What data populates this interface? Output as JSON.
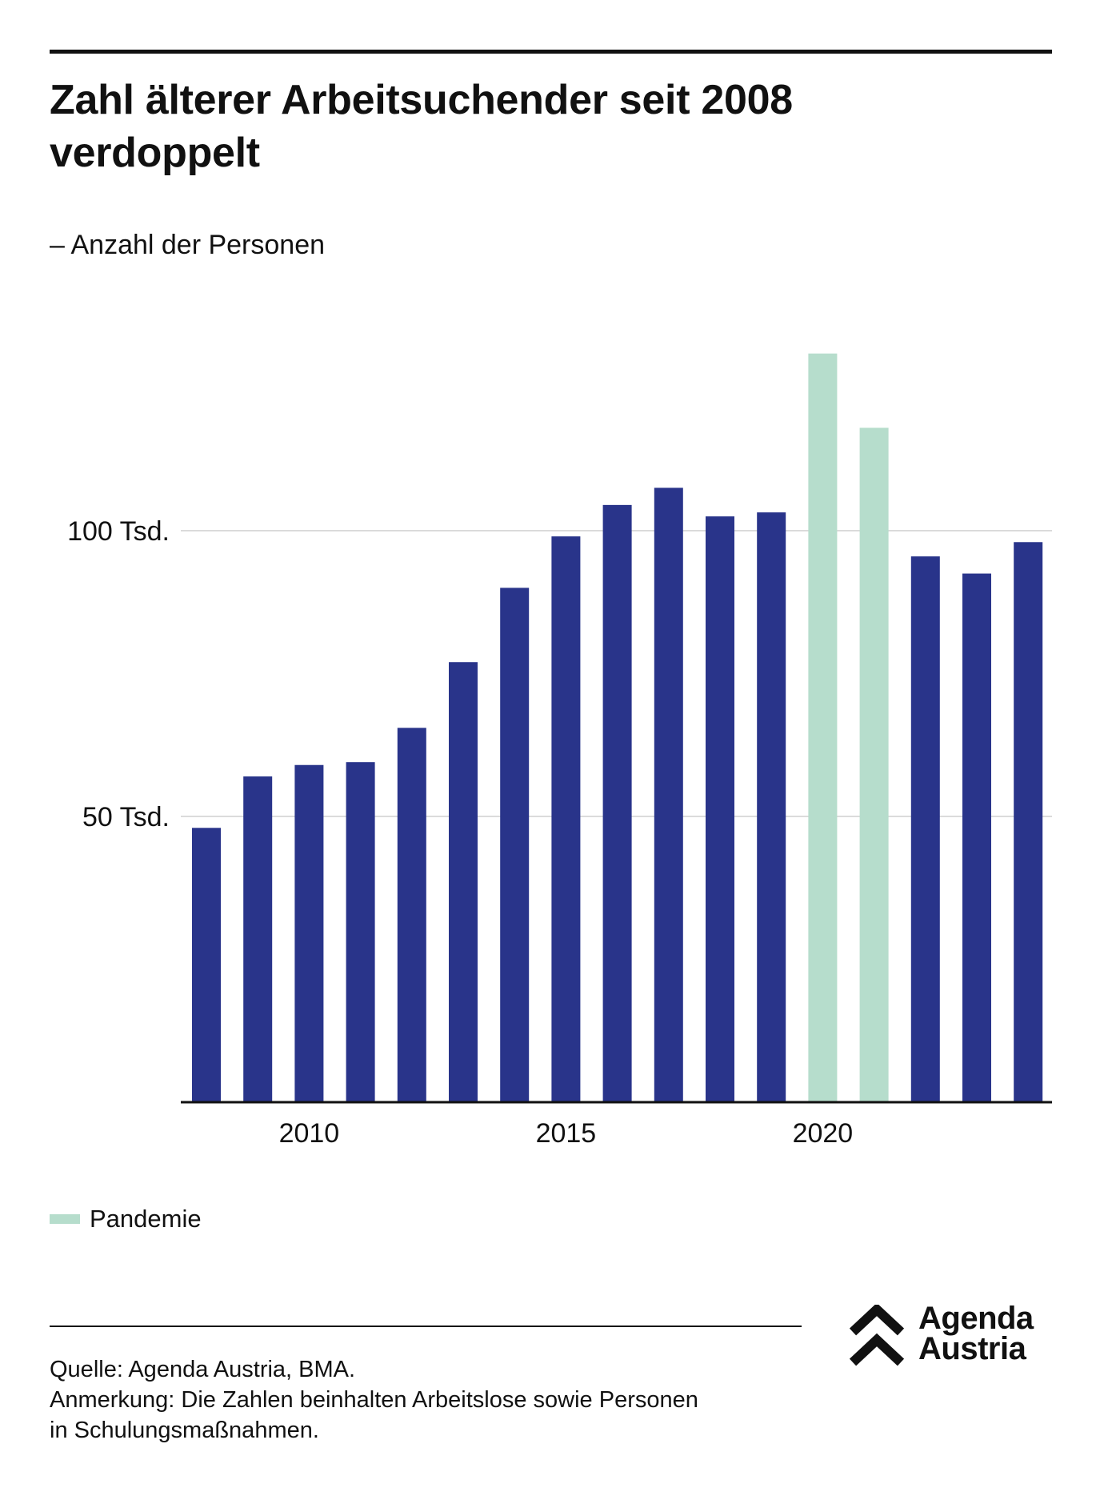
{
  "header": {
    "title_line1": "Zahl älterer Arbeitsuchender seit 2008",
    "title_line2": "verdoppelt",
    "subtitle": "– Anzahl der Personen"
  },
  "legend": {
    "label": "Pandemie"
  },
  "footer": {
    "source": "Quelle: Agenda Austria, BMA.",
    "note_line1": "Anmerkung: Die Zahlen beinhalten Arbeitslose sowie Personen",
    "note_line2": "in Schulungsmaßnahmen."
  },
  "logo": {
    "line1": "Agenda",
    "line2": "Austria"
  },
  "colors": {
    "regular": "#29348a",
    "pandemic": "#b6ddcc",
    "grid": "#cfcfcf",
    "axis": "#111111"
  },
  "chart_data": {
    "type": "bar",
    "title": "Zahl älterer Arbeitsuchender seit 2008 verdoppelt",
    "subtitle": "– Anzahl der Personen",
    "x": [
      2008,
      2009,
      2010,
      2011,
      2012,
      2013,
      2014,
      2015,
      2016,
      2017,
      2018,
      2019,
      2020,
      2021,
      2022,
      2023,
      2024
    ],
    "values": [
      48000,
      57000,
      59000,
      59500,
      65500,
      77000,
      90000,
      99000,
      104500,
      107500,
      102500,
      103200,
      131000,
      118000,
      95500,
      92500,
      98000
    ],
    "highlight": [
      false,
      false,
      false,
      false,
      false,
      false,
      false,
      false,
      false,
      false,
      false,
      false,
      true,
      true,
      false,
      false,
      false
    ],
    "ylim": [
      0,
      133000
    ],
    "y_ticks": [
      {
        "value": 50000,
        "label": "50 Tsd."
      },
      {
        "value": 100000,
        "label": "100 Tsd."
      }
    ],
    "x_ticks": [
      {
        "value": 2010,
        "label": "2010"
      },
      {
        "value": 2015,
        "label": "2015"
      },
      {
        "value": 2020,
        "label": "2020"
      }
    ],
    "grid": true,
    "legend_placement": "bottom-left",
    "series": [
      {
        "name": "Pandemie",
        "years": [
          2020,
          2021
        ]
      }
    ]
  }
}
